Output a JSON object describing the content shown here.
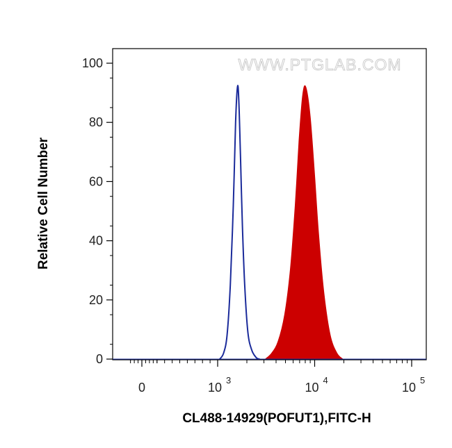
{
  "chart_data": {
    "type": "area",
    "title": "",
    "xlabel": "CL488-14929(POFUT1),FITC-H",
    "ylabel": "Relative Cell Number",
    "watermark": "WWW.PTGLAB.COM",
    "x_scale": "biexponential",
    "ylim": [
      0,
      100
    ],
    "y_ticks": [
      {
        "value": 0,
        "label": "0"
      },
      {
        "value": 20,
        "label": "20"
      },
      {
        "value": 40,
        "label": "40"
      },
      {
        "value": 60,
        "label": "60"
      },
      {
        "value": 80,
        "label": "80"
      },
      {
        "value": 100,
        "label": "100"
      }
    ],
    "x_ticks": [
      {
        "value": 0,
        "base": "0",
        "exp": ""
      },
      {
        "value": 1000,
        "base": "10",
        "exp": "3"
      },
      {
        "value": 10000,
        "base": "10",
        "exp": "4"
      },
      {
        "value": 100000,
        "base": "10",
        "exp": "5"
      }
    ],
    "series": [
      {
        "style": "outline",
        "color": "#1a2a9a",
        "x": [
          1050,
          1150,
          1250,
          1350,
          1450,
          1530,
          1600,
          1650,
          1720,
          1800,
          1900,
          2050,
          2250,
          2500,
          2700
        ],
        "y": [
          0,
          2,
          8,
          25,
          52,
          80,
          92,
          88,
          68,
          45,
          25,
          9,
          3,
          0.5,
          0
        ]
      },
      {
        "style": "filled",
        "color": "#cc0000",
        "x": [
          3100,
          3600,
          4200,
          4900,
          5600,
          6300,
          6900,
          7500,
          8100,
          9000,
          10000,
          11000,
          12500,
          14500,
          17000,
          19500
        ],
        "y": [
          0,
          2,
          6,
          15,
          30,
          52,
          74,
          89,
          92,
          82,
          62,
          42,
          22,
          8,
          2,
          0
        ]
      }
    ]
  }
}
